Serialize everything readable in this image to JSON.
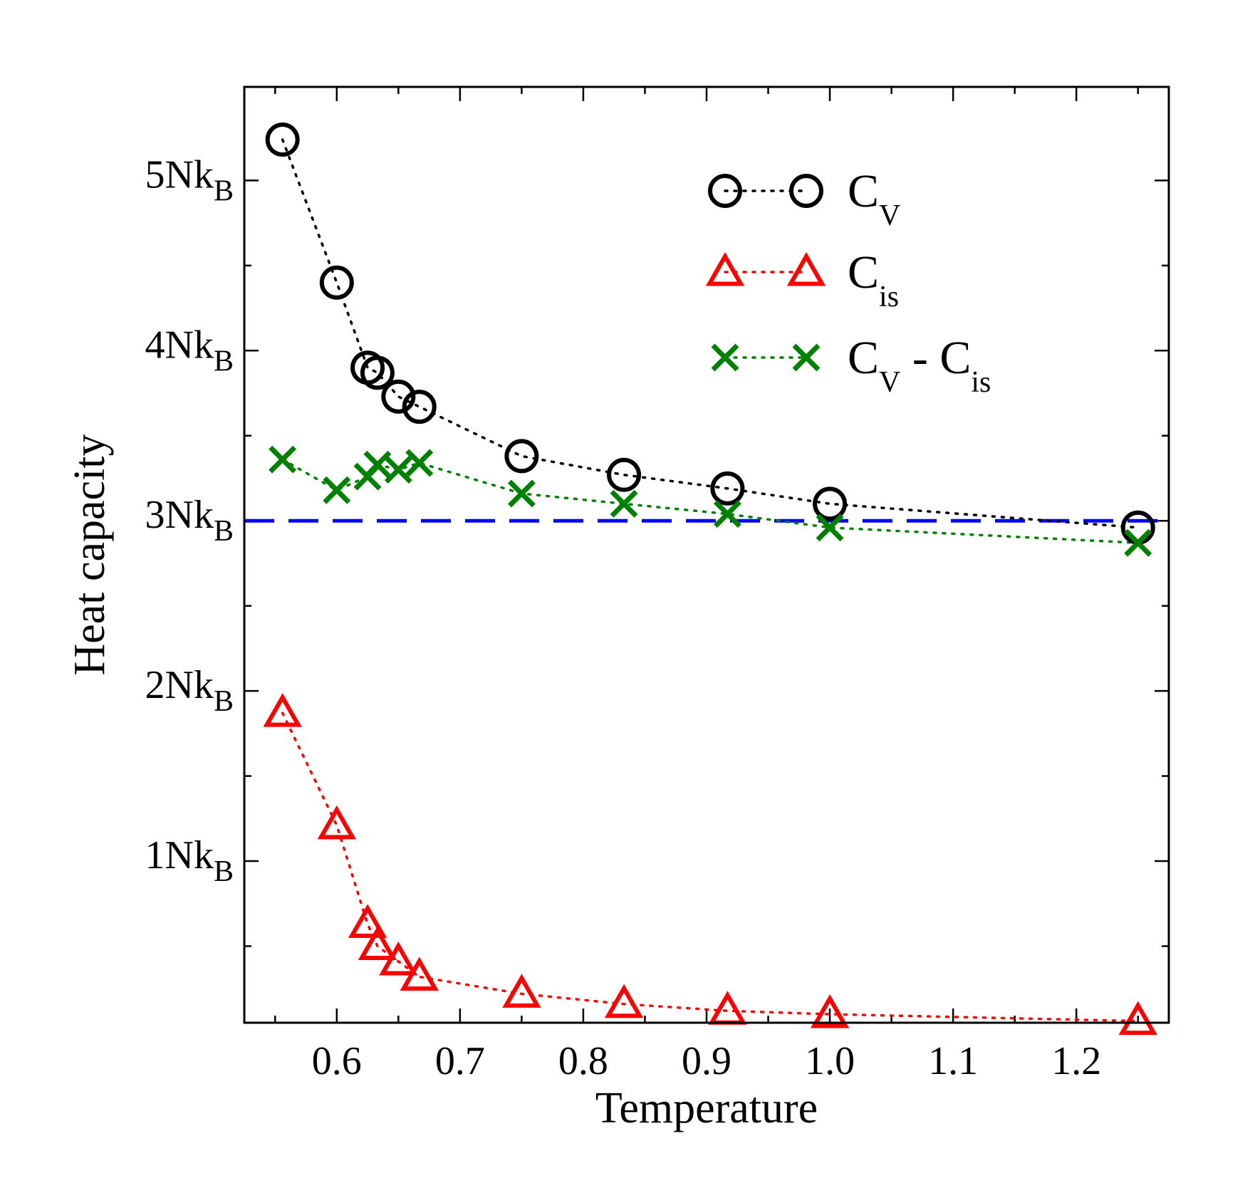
{
  "chart_data": {
    "type": "scatter",
    "xlabel": "Temperature",
    "ylabel": "Heat capacity",
    "xlim": [
      0.525,
      1.275
    ],
    "ylim": [
      0.05,
      5.55
    ],
    "x_ticks": [
      {
        "value": 0.6,
        "label": "0.6"
      },
      {
        "value": 0.7,
        "label": "0.7"
      },
      {
        "value": 0.8,
        "label": "0.8"
      },
      {
        "value": 0.9,
        "label": "0.9"
      },
      {
        "value": 1.0,
        "label": "1.0"
      },
      {
        "value": 1.1,
        "label": "1.1"
      },
      {
        "value": 1.2,
        "label": "1.2"
      }
    ],
    "x_minor_ticks": [
      0.55,
      0.65,
      0.75,
      0.85,
      0.95,
      1.05,
      1.15,
      1.25
    ],
    "y_ticks": [
      {
        "value": 1,
        "main": "1Nk",
        "sub": "B"
      },
      {
        "value": 2,
        "main": "2Nk",
        "sub": "B"
      },
      {
        "value": 3,
        "main": "3Nk",
        "sub": "B"
      },
      {
        "value": 4,
        "main": "4Nk",
        "sub": "B"
      },
      {
        "value": 5,
        "main": "5Nk",
        "sub": "B"
      }
    ],
    "y_minor_ticks": [
      0.5,
      1.5,
      2.5,
      3.5,
      4.5
    ],
    "reference_line": {
      "y": 3.0,
      "style": "dashed",
      "color": "#0000ff"
    },
    "legend_placement": "top-right",
    "series": [
      {
        "name": "C",
        "name_sub": "V",
        "marker": "circle",
        "line": "dotted",
        "color": "#000000",
        "x": [
          0.556,
          0.6,
          0.625,
          0.633,
          0.65,
          0.667,
          0.75,
          0.833,
          0.917,
          1.0,
          1.25
        ],
        "y": [
          5.24,
          4.4,
          3.9,
          3.87,
          3.73,
          3.67,
          3.38,
          3.27,
          3.19,
          3.1,
          2.96
        ]
      },
      {
        "name": "C",
        "name_sub": "is",
        "marker": "triangle",
        "line": "dotted",
        "color": "#ff0000",
        "x": [
          0.556,
          0.6,
          0.625,
          0.633,
          0.65,
          0.667,
          0.75,
          0.833,
          0.917,
          1.0,
          1.25
        ],
        "y": [
          1.87,
          1.21,
          0.63,
          0.5,
          0.41,
          0.32,
          0.22,
          0.16,
          0.12,
          0.1,
          0.06
        ]
      },
      {
        "name": "C",
        "name_sub": "V",
        "name_mid": " - C",
        "name_sub2": "is",
        "marker": "x",
        "line": "dotted",
        "color": "#008000",
        "x": [
          0.556,
          0.6,
          0.625,
          0.633,
          0.65,
          0.667,
          0.75,
          0.833,
          0.917,
          1.0,
          1.25
        ],
        "y": [
          3.36,
          3.18,
          3.26,
          3.33,
          3.3,
          3.34,
          3.16,
          3.1,
          3.04,
          2.96,
          2.87
        ]
      }
    ]
  }
}
